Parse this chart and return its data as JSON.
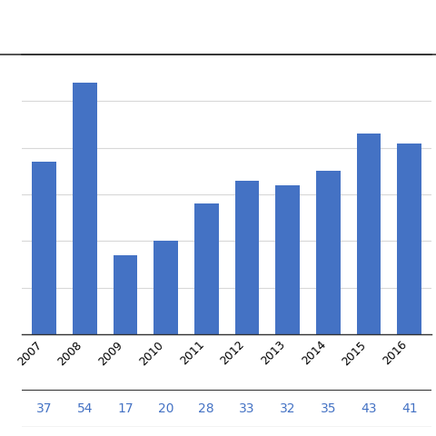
{
  "years": [
    "2007",
    "2008",
    "2009",
    "2010",
    "2011",
    "2012",
    "2013",
    "2014",
    "2015",
    "2016"
  ],
  "values": [
    37,
    54,
    17,
    20,
    28,
    33,
    32,
    35,
    43,
    41
  ],
  "bar_color": "#4472C4",
  "ylim": [
    0,
    60
  ],
  "yticks": [
    0,
    10,
    20,
    30,
    40,
    50,
    60
  ],
  "grid_color": "#d8d8d8",
  "value_row_labels": [
    "37",
    "54",
    "17",
    "20",
    "28",
    "33",
    "32",
    "35",
    "43",
    "41"
  ],
  "value_row_color": "#4472C4",
  "border_color": "#333333",
  "tick_fontsize": 9,
  "value_fontsize": 10
}
